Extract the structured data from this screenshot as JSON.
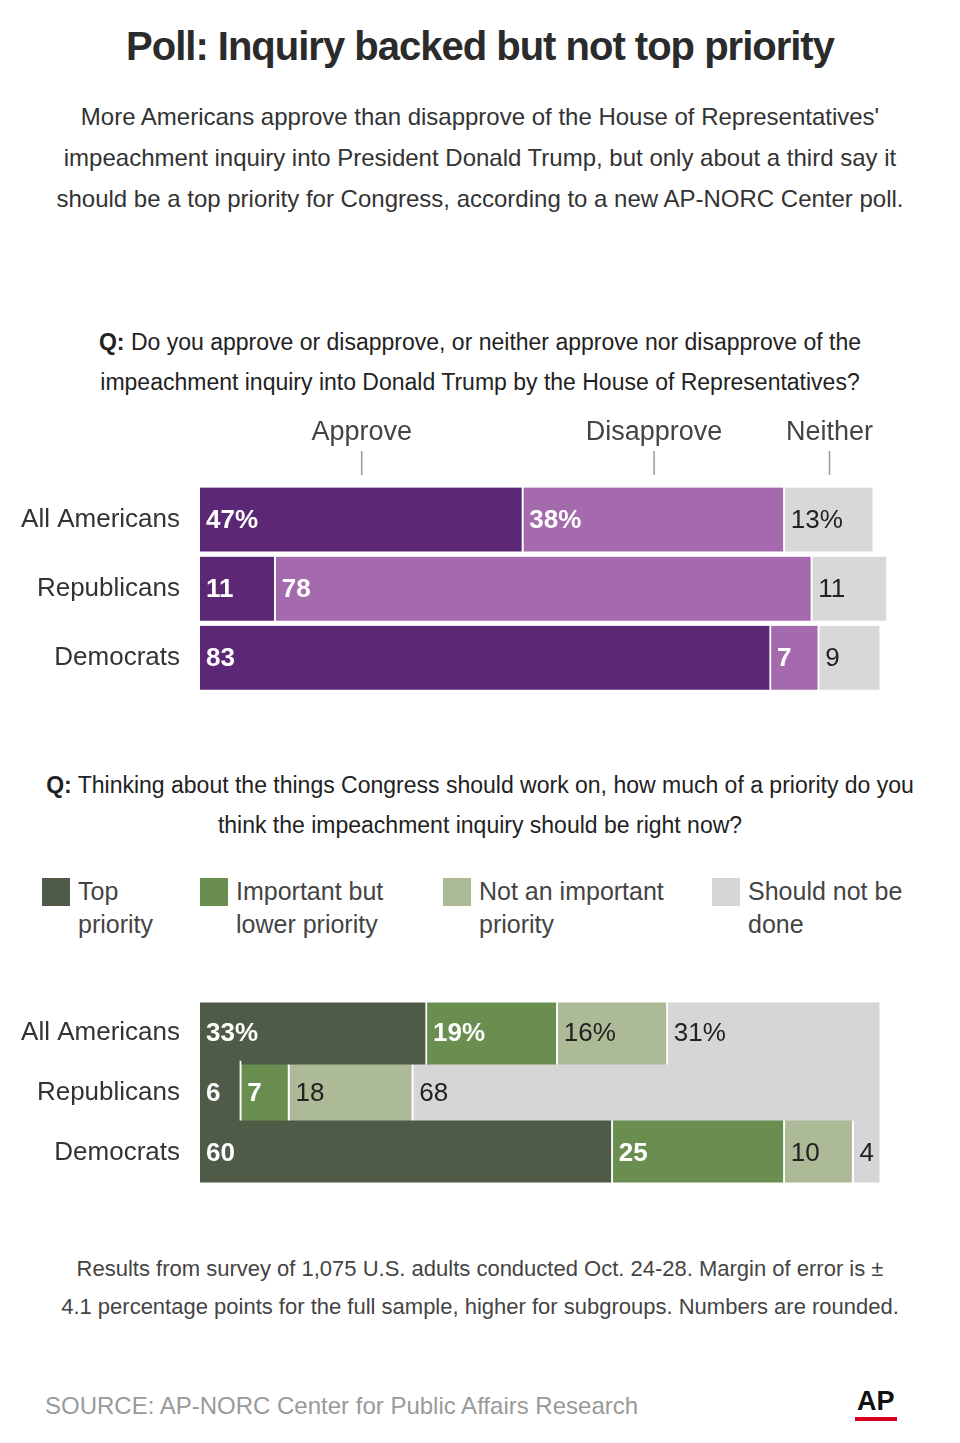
{
  "title": "Poll: Inquiry backed but not top priority",
  "subtitle": "More Americans approve than disapprove of the House of Representatives' impeachment inquiry into President Donald Trump, but only about a third say it should be a top priority for Congress, according to a new AP-NORC Center poll.",
  "chart_data": [
    {
      "type": "bar",
      "title": "Q: Do you approve or disapprove, or neither approve nor disapprove of the impeachment inquiry into Donald Trump by the House of Representatives?",
      "orientation": "horizontal",
      "stacked": true,
      "data_labels": true,
      "grid": false,
      "tick_labels": "y",
      "legend": "top",
      "categories": [
        "All Americans",
        "Republicans",
        "Democrats"
      ],
      "xlim": [
        0,
        100
      ],
      "xticks": [
        0,
        100
      ],
      "series": [
        {
          "name": "Approve",
          "color": "#5c2775",
          "values": [
            47,
            11,
            83
          ],
          "value_labels": [
            "47%",
            "11",
            "83"
          ]
        },
        {
          "name": "Disapprove",
          "color": "#a56aad",
          "values": [
            38,
            78,
            7
          ],
          "value_labels": [
            "38%",
            "78",
            "7"
          ]
        },
        {
          "name": "Neither",
          "color": "#d8d8d8",
          "values": [
            13,
            11,
            9
          ],
          "value_labels": [
            "13%",
            "11",
            "9"
          ]
        }
      ]
    },
    {
      "type": "bar",
      "title": "Q: Thinking about the things Congress should work on, how much of a priority do you think the impeachment inquiry should be right now?",
      "orientation": "horizontal",
      "stacked": true,
      "data_labels": true,
      "grid": false,
      "tick_labels": "y",
      "legend": "top",
      "categories": [
        "All Americans",
        "Republicans",
        "Democrats"
      ],
      "xlim": [
        0,
        100
      ],
      "xticks": [
        0,
        100
      ],
      "series": [
        {
          "name": "Top priority",
          "color": "#4f5b46",
          "values": [
            33,
            6,
            60
          ],
          "value_labels": [
            "33%",
            "6",
            "60"
          ]
        },
        {
          "name": "Important but lower priority",
          "color": "#6a8e50",
          "values": [
            19,
            7,
            25
          ],
          "value_labels": [
            "19%",
            "7",
            "25"
          ]
        },
        {
          "name": "Not an important priority",
          "color": "#adba98",
          "values": [
            16,
            18,
            10
          ],
          "value_labels": [
            "16%",
            "18",
            "10"
          ]
        },
        {
          "name": "Should not be done",
          "color": "#d6d6d6",
          "values": [
            31,
            68,
            4
          ],
          "value_labels": [
            "31%",
            "68",
            "4"
          ]
        }
      ]
    }
  ],
  "footnote": "Results from survey of 1,075 U.S. adults conducted Oct. 24-28. Margin of error is ± 4.1 percentage points for the full sample, higher for subgroups. Numbers are rounded.",
  "source": "SOURCE: AP-NORC Center for Public Affairs Research",
  "logo": "AP"
}
